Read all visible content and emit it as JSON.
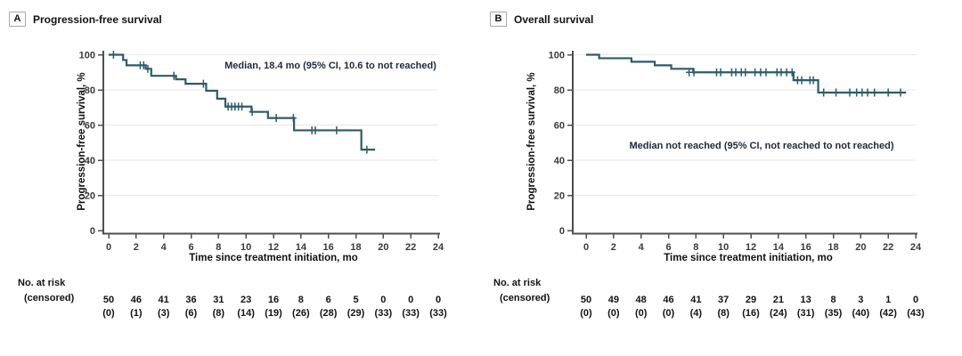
{
  "colors": {
    "curve": "#2e5a6b",
    "grid": "#e7e7e7",
    "axis": "#4f4f4f",
    "tick_text": "#3a3a3a",
    "text": "#121212",
    "annotation_text": "#1c2b3a",
    "panel_box_border": "#a8a8a8"
  },
  "chart_data": [
    {
      "type": "line",
      "subtype": "kaplan-meier-step",
      "panel_label": "A",
      "title": "Progression-free survival",
      "annotation": "Median, 18.4 mo (95% CI, 10.6 to not reached)",
      "xlabel": "Time since treatment initiation, mo",
      "ylabel": "Progression-free survival, %",
      "xlim": [
        0,
        24
      ],
      "ylim": [
        0,
        100
      ],
      "x_ticks": [
        0,
        2,
        4,
        6,
        8,
        10,
        12,
        14,
        16,
        18,
        20,
        22,
        24
      ],
      "y_ticks": [
        0,
        20,
        40,
        60,
        80,
        100
      ],
      "grid": "horizontal",
      "legend": "none",
      "steps": [
        [
          0,
          100
        ],
        [
          1.05,
          97
        ],
        [
          1.3,
          94
        ],
        [
          2.7,
          92
        ],
        [
          3.1,
          88
        ],
        [
          4.9,
          86
        ],
        [
          5.6,
          83.5
        ],
        [
          7.1,
          79.5
        ],
        [
          7.9,
          75
        ],
        [
          8.5,
          70.5
        ],
        [
          10.4,
          67.5
        ],
        [
          11.6,
          64
        ],
        [
          13.5,
          57
        ],
        [
          18.4,
          46
        ]
      ],
      "curve_end": 19.4,
      "censors": [
        [
          0.35,
          100
        ],
        [
          2.3,
          94
        ],
        [
          2.55,
          94
        ],
        [
          2.85,
          92
        ],
        [
          4.75,
          88
        ],
        [
          6.9,
          83.5
        ],
        [
          8.7,
          70.5
        ],
        [
          8.95,
          70.5
        ],
        [
          9.2,
          70.5
        ],
        [
          9.45,
          70.5
        ],
        [
          9.7,
          70.5
        ],
        [
          10.45,
          67.5
        ],
        [
          12.2,
          64
        ],
        [
          13.45,
          64
        ],
        [
          14.8,
          57
        ],
        [
          15.05,
          57
        ],
        [
          16.6,
          57
        ],
        [
          18.8,
          46
        ]
      ],
      "risk_label": "No. at risk",
      "censored_label": "(censored)",
      "at_risk": [
        50,
        46,
        41,
        36,
        31,
        23,
        16,
        8,
        6,
        5,
        0,
        0,
        0
      ],
      "censored": [
        "(0)",
        "(1)",
        "(3)",
        "(6)",
        "(8)",
        "(14)",
        "(19)",
        "(26)",
        "(28)",
        "(29)",
        "(33)",
        "(33)",
        "(33)"
      ]
    },
    {
      "type": "line",
      "subtype": "kaplan-meier-step",
      "panel_label": "B",
      "title": "Overall survival",
      "annotation": "Median not reached (95% CI, not reached to not reached)",
      "xlabel": "Time since treatment initiation, mo",
      "ylabel": "Progression-free survival, %",
      "xlim": [
        0,
        24
      ],
      "ylim": [
        0,
        100
      ],
      "x_ticks": [
        0,
        2,
        4,
        6,
        8,
        10,
        12,
        14,
        16,
        18,
        20,
        22,
        24
      ],
      "y_ticks": [
        0,
        20,
        40,
        60,
        80,
        100
      ],
      "grid": "horizontal",
      "legend": "none",
      "steps": [
        [
          0,
          100
        ],
        [
          0.95,
          98
        ],
        [
          3.3,
          96
        ],
        [
          5.0,
          94
        ],
        [
          6.2,
          92
        ],
        [
          7.8,
          90
        ],
        [
          15.1,
          85.5
        ],
        [
          16.9,
          78.5
        ]
      ],
      "curve_end": 23.3,
      "censors": [
        [
          7.5,
          90
        ],
        [
          7.85,
          90
        ],
        [
          9.5,
          90
        ],
        [
          9.8,
          90
        ],
        [
          10.6,
          90
        ],
        [
          10.9,
          90
        ],
        [
          11.3,
          90
        ],
        [
          11.6,
          90
        ],
        [
          12.3,
          90
        ],
        [
          12.7,
          90
        ],
        [
          13.1,
          90
        ],
        [
          13.9,
          90
        ],
        [
          14.2,
          90
        ],
        [
          14.6,
          90
        ],
        [
          15.0,
          90
        ],
        [
          15.4,
          85.5
        ],
        [
          15.7,
          85.5
        ],
        [
          16.3,
          85.5
        ],
        [
          16.55,
          85.5
        ],
        [
          17.3,
          78.5
        ],
        [
          18.2,
          78.5
        ],
        [
          19.2,
          78.5
        ],
        [
          19.7,
          78.5
        ],
        [
          20.1,
          78.5
        ],
        [
          20.5,
          78.5
        ],
        [
          21.0,
          78.5
        ],
        [
          22.0,
          78.5
        ],
        [
          22.9,
          78.5
        ]
      ],
      "risk_label": "No. at risk",
      "censored_label": "(censored)",
      "at_risk": [
        50,
        49,
        48,
        46,
        41,
        37,
        29,
        21,
        13,
        8,
        3,
        1,
        0
      ],
      "censored": [
        "(0)",
        "(0)",
        "(0)",
        "(0)",
        "(4)",
        "(8)",
        "(16)",
        "(24)",
        "(31)",
        "(35)",
        "(40)",
        "(42)",
        "(43)"
      ]
    }
  ]
}
